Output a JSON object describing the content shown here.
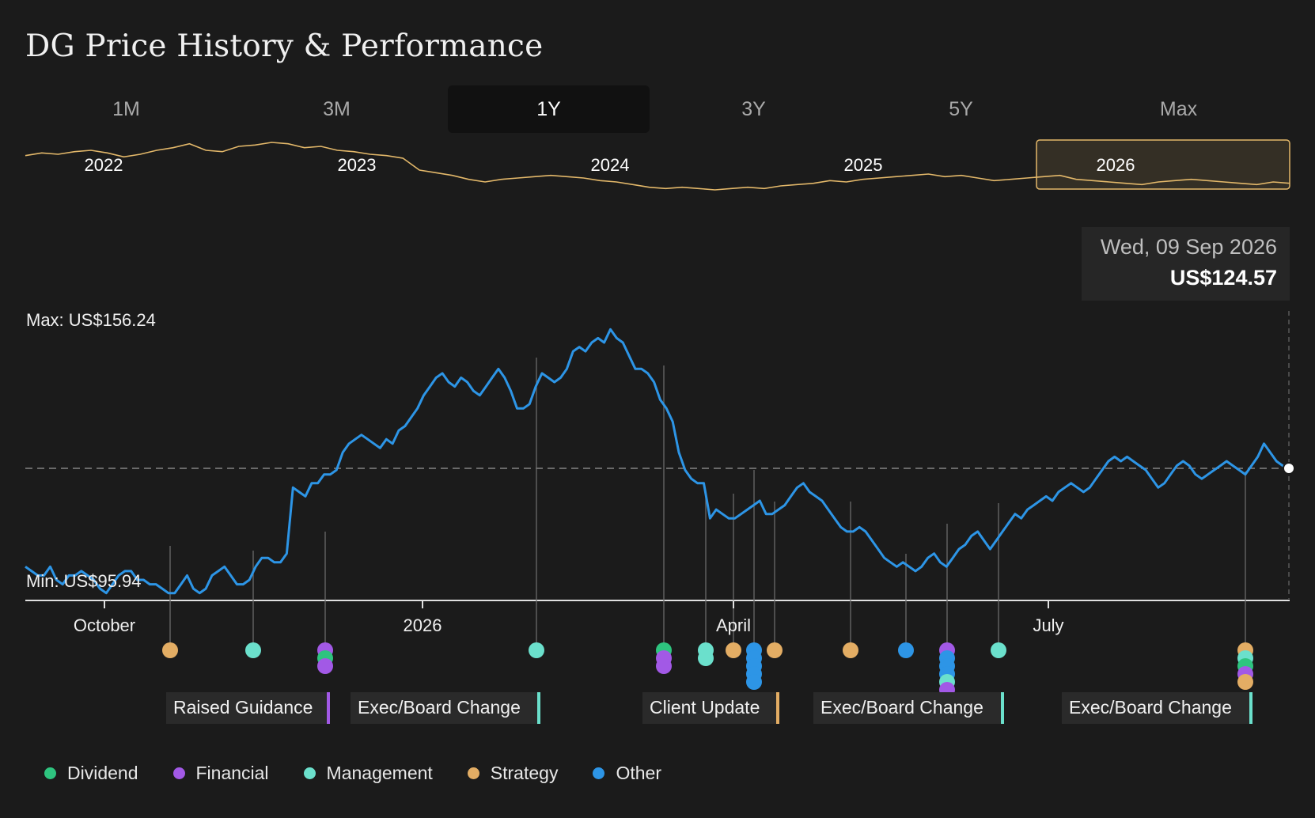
{
  "title": "DG Price History & Performance",
  "tabs": [
    {
      "label": "1M",
      "active": false
    },
    {
      "label": "3M",
      "active": false
    },
    {
      "label": "1Y",
      "active": true
    },
    {
      "label": "3Y",
      "active": false
    },
    {
      "label": "5Y",
      "active": false
    },
    {
      "label": "Max",
      "active": false
    }
  ],
  "tooltip": {
    "date": "Wed, 09 Sep 2026",
    "price": "US$124.57"
  },
  "colors": {
    "price_line": "#2d95e6",
    "overview_line": "#e3b86a",
    "dividend": "#2ec47f",
    "financial": "#a259e6",
    "management": "#6be0cc",
    "strategy": "#e3ad64",
    "other": "#2d95e6"
  },
  "legend": [
    {
      "label": "Dividend",
      "color": "#2ec47f"
    },
    {
      "label": "Financial",
      "color": "#a259e6"
    },
    {
      "label": "Management",
      "color": "#6be0cc"
    },
    {
      "label": "Strategy",
      "color": "#e3ad64"
    },
    {
      "label": "Other",
      "color": "#2d95e6"
    }
  ],
  "chart_data": [
    {
      "type": "line",
      "name": "overview",
      "x_ticks": [
        "2022",
        "2023",
        "2024",
        "2025",
        "2026"
      ],
      "values": [
        146,
        148,
        147,
        149,
        150,
        148,
        145,
        147,
        150,
        152,
        155,
        150,
        149,
        153,
        154,
        156,
        155,
        152,
        153,
        150,
        149,
        147,
        146,
        144,
        135,
        133,
        131,
        128,
        126,
        128,
        129,
        130,
        131,
        130,
        129,
        127,
        126,
        124,
        122,
        121,
        122,
        121,
        120,
        121,
        122,
        121,
        123,
        124,
        125,
        127,
        126,
        128,
        129,
        130,
        131,
        132,
        130,
        131,
        129,
        127,
        128,
        129,
        130,
        131,
        128,
        127,
        126,
        125,
        124,
        126,
        127,
        128,
        127,
        126,
        125,
        124,
        126,
        125
      ]
    },
    {
      "type": "line",
      "name": "price",
      "x_ticks": [
        "October",
        "2026",
        "April",
        "July"
      ],
      "min_label": "Min: US$95.94",
      "max_label": "Max: US$156.24",
      "ylim": [
        95.94,
        156.24
      ],
      "reference_value": 124.57,
      "values": [
        102,
        101,
        100,
        100,
        102,
        99,
        98,
        100,
        100,
        101,
        100,
        99,
        97,
        96,
        98,
        100,
        101,
        101,
        99,
        99,
        98,
        98,
        97,
        96,
        96,
        98,
        100,
        97,
        96,
        97,
        100,
        101,
        102,
        100,
        98,
        98,
        99,
        102,
        104,
        104,
        103,
        103,
        105,
        120,
        119,
        118,
        121,
        121,
        123,
        123,
        124,
        128,
        130,
        131,
        132,
        131,
        130,
        129,
        131,
        130,
        133,
        134,
        136,
        138,
        141,
        143,
        145,
        146,
        144,
        143,
        145,
        144,
        142,
        141,
        143,
        145,
        147,
        145,
        142,
        138,
        138,
        139,
        143,
        146,
        145,
        144,
        145,
        147,
        151,
        152,
        151,
        153,
        154,
        153,
        156,
        154,
        153,
        150,
        147,
        147,
        146,
        144,
        140,
        138,
        135,
        128,
        124,
        122,
        121,
        121,
        113,
        115,
        114,
        113,
        113,
        114,
        115,
        116,
        117,
        114,
        114,
        115,
        116,
        118,
        120,
        121,
        119,
        118,
        117,
        115,
        113,
        111,
        110,
        110,
        111,
        110,
        108,
        106,
        104,
        103,
        102,
        103,
        102,
        101,
        102,
        104,
        105,
        103,
        102,
        104,
        106,
        107,
        109,
        110,
        108,
        106,
        108,
        110,
        112,
        114,
        113,
        115,
        116,
        117,
        118,
        117,
        119,
        120,
        121,
        120,
        119,
        120,
        122,
        124,
        126,
        127,
        126,
        127,
        126,
        125,
        124,
        122,
        120,
        121,
        123,
        125,
        126,
        125,
        123,
        122,
        123,
        124,
        125,
        126,
        125,
        124,
        123,
        125,
        127,
        130,
        128,
        126,
        125,
        124
      ]
    }
  ],
  "event_labels": [
    {
      "label": "Raised Guidance",
      "color": "#a259e6"
    },
    {
      "label": "Exec/Board Change",
      "color": "#6be0cc"
    },
    {
      "label": "Client Update",
      "color": "#e3ad64"
    },
    {
      "label": "Exec/Board Change",
      "color": "#6be0cc"
    },
    {
      "label": "Exec/Board Change",
      "color": "#6be0cc"
    }
  ],
  "events": [
    {
      "dots": [
        "strategy"
      ]
    },
    {
      "dots": [
        "management"
      ]
    },
    {
      "dots": [
        "financial",
        "dividend",
        "financial"
      ]
    },
    {
      "dots": [
        "management"
      ]
    },
    {
      "dots": [
        "dividend",
        "financial",
        "financial"
      ]
    },
    {
      "dots": [
        "management",
        "management"
      ]
    },
    {
      "dots": [
        "strategy"
      ]
    },
    {
      "dots": [
        "other",
        "other",
        "other",
        "other",
        "other"
      ]
    },
    {
      "dots": [
        "strategy"
      ]
    },
    {
      "dots": [
        "strategy"
      ]
    },
    {
      "dots": [
        "other"
      ]
    },
    {
      "dots": [
        "financial",
        "other",
        "other",
        "other",
        "management",
        "financial"
      ]
    },
    {
      "dots": [
        "management"
      ]
    },
    {
      "dots": [
        "strategy",
        "management",
        "dividend",
        "financial",
        "strategy"
      ]
    }
  ]
}
